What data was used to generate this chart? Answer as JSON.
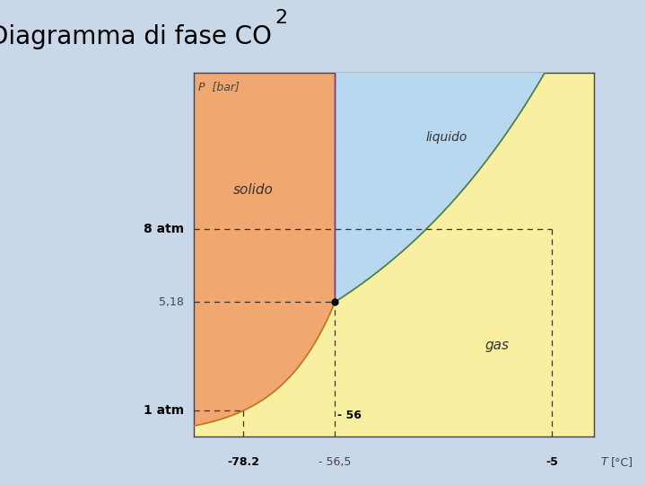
{
  "title": "Diagramma di fase CO",
  "title_sub": "2",
  "title_fontsize": 20,
  "outer_bg": "#c8d8e8",
  "plot_bg": "#c8dce8",
  "solid_color": "#f0a870",
  "liquid_color": "#b8d8f0",
  "gas_color": "#f8f0a0",
  "T_triple": -56.5,
  "P_triple": 5.18,
  "T_sublim_1atm": -78.2,
  "T_vap_exit": -5,
  "P_8atm": 8.0,
  "P_1atm": 1.0,
  "T_min": -90,
  "T_max": 5,
  "P_min": 0,
  "P_max": 14,
  "solid_label": "solido",
  "liquid_label": "liquido",
  "gas_label": "gas",
  "ylabel": "P  [bar]",
  "xlabel_label": "T",
  "xlabel_unit": "[°C]",
  "label_8atm": "8 atm",
  "label_1atm": "1 atm",
  "label_518": "5,18",
  "label_78": "-78.2",
  "label_565": "- 56,5",
  "label_m5": "-5",
  "label_56": "- 56"
}
